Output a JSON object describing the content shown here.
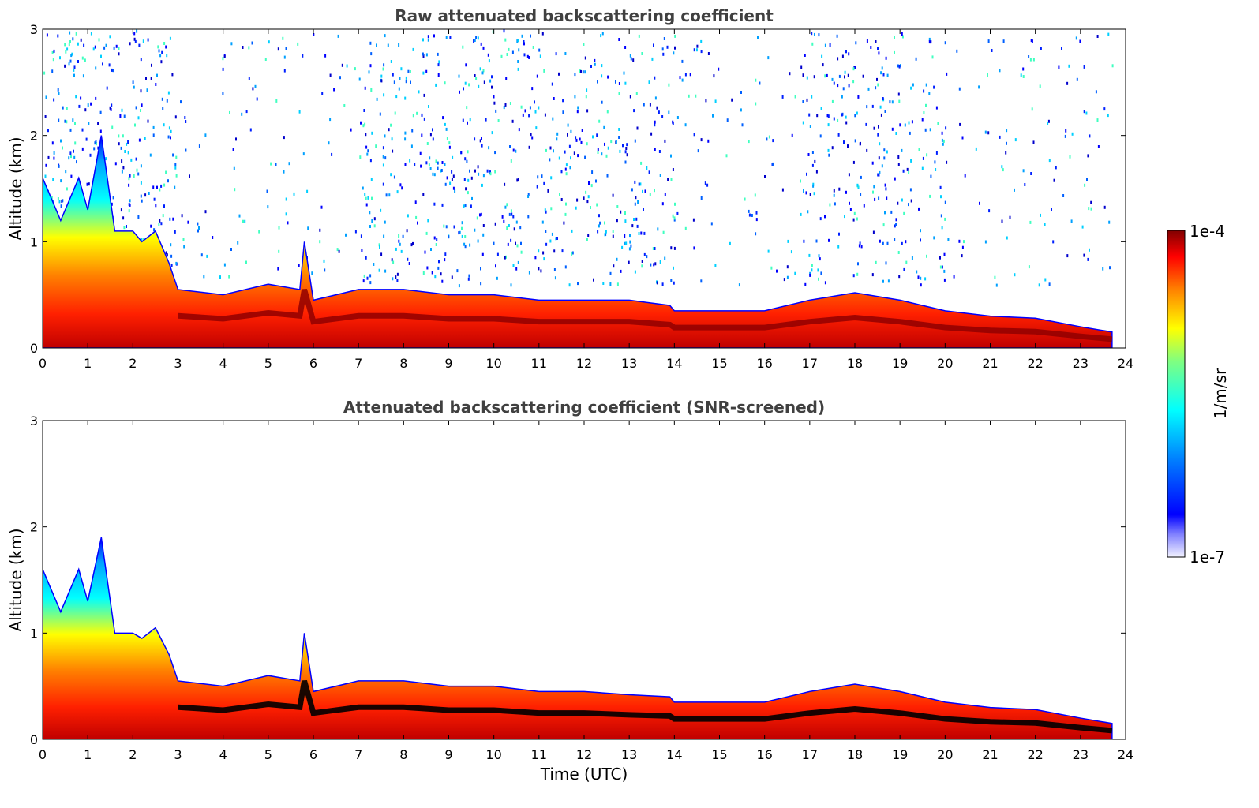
{
  "chart_data": [
    {
      "type": "heatmap",
      "title": "Raw attenuated backscattering coefficient",
      "xlabel": "",
      "ylabel": "Altitude (km)",
      "xlim": [
        0,
        24
      ],
      "ylim": [
        0,
        3
      ],
      "xticks": [
        "0",
        "1",
        "2",
        "3",
        "4",
        "5",
        "6",
        "7",
        "8",
        "9",
        "10",
        "11",
        "12",
        "13",
        "14",
        "15",
        "16",
        "17",
        "18",
        "19",
        "20",
        "21",
        "22",
        "23",
        "24"
      ],
      "yticks": [
        "0",
        "1",
        "2",
        "3"
      ],
      "data_end_hour": 23.7,
      "layer_top_km": {
        "hours": [
          0,
          0.4,
          0.8,
          1.0,
          1.3,
          1.6,
          2.0,
          2.2,
          2.5,
          2.8,
          3.0,
          4.0,
          5.0,
          5.7,
          5.8,
          6.0,
          7.0,
          8.0,
          9.0,
          10.0,
          11.0,
          12.0,
          13.0,
          13.9,
          14.0,
          15.0,
          16.0,
          17.0,
          18.0,
          19.0,
          20.0,
          21.0,
          22.0,
          23.0,
          23.7
        ],
        "values": [
          1.6,
          1.2,
          1.6,
          1.3,
          2.0,
          1.1,
          1.1,
          1.0,
          1.1,
          0.8,
          0.55,
          0.5,
          0.6,
          0.55,
          1.0,
          0.45,
          0.55,
          0.55,
          0.5,
          0.5,
          0.45,
          0.45,
          0.45,
          0.4,
          0.35,
          0.35,
          0.35,
          0.45,
          0.52,
          0.45,
          0.35,
          0.3,
          0.28,
          0.2,
          0.15
        ]
      },
      "note": "Sparse noise speckle above layer extends to 3 km"
    },
    {
      "type": "heatmap",
      "title": "Attenuated backscattering coefficient (SNR-screened)",
      "xlabel": "Time (UTC)",
      "ylabel": "Altitude (km)",
      "xlim": [
        0,
        24
      ],
      "ylim": [
        0,
        3
      ],
      "xticks": [
        "0",
        "1",
        "2",
        "3",
        "4",
        "5",
        "6",
        "7",
        "8",
        "9",
        "10",
        "11",
        "12",
        "13",
        "14",
        "15",
        "16",
        "17",
        "18",
        "19",
        "20",
        "21",
        "22",
        "23",
        "24"
      ],
      "yticks": [
        "0",
        "1",
        "2",
        "3"
      ],
      "data_end_hour": 23.7,
      "layer_top_km": {
        "hours": [
          0,
          0.4,
          0.8,
          1.0,
          1.3,
          1.6,
          2.0,
          2.2,
          2.5,
          2.8,
          3.0,
          4.0,
          5.0,
          5.7,
          5.8,
          6.0,
          7.0,
          8.0,
          9.0,
          10.0,
          11.0,
          12.0,
          13.0,
          13.9,
          14.0,
          15.0,
          16.0,
          17.0,
          18.0,
          19.0,
          20.0,
          21.0,
          22.0,
          23.0,
          23.7
        ],
        "values": [
          1.6,
          1.2,
          1.6,
          1.3,
          1.9,
          1.0,
          1.0,
          0.95,
          1.05,
          0.8,
          0.55,
          0.5,
          0.6,
          0.55,
          1.0,
          0.45,
          0.55,
          0.55,
          0.5,
          0.5,
          0.45,
          0.45,
          0.42,
          0.4,
          0.35,
          0.35,
          0.35,
          0.45,
          0.52,
          0.45,
          0.35,
          0.3,
          0.28,
          0.2,
          0.15
        ]
      }
    }
  ],
  "colorbar": {
    "max_label": "1e-4",
    "min_label": "1e-7",
    "unit_label": "1/m/sr",
    "scale": "log",
    "colormap": "jet"
  }
}
